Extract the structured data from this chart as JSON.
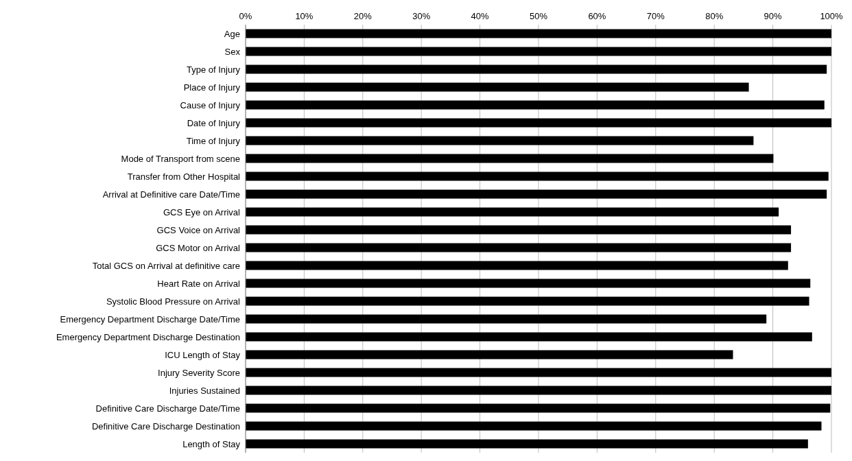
{
  "chart_data": {
    "type": "bar",
    "orientation": "horizontal",
    "categories": [
      "Age",
      "Sex",
      "Type of Injury",
      "Place of Injury",
      "Cause of Injury",
      "Date of Injury",
      "Time of Injury",
      "Mode of Transport from scene",
      "Transfer from Other Hospital",
      "Arrival at Definitive care Date/Time",
      "GCS Eye on Arrival",
      "GCS Voice on Arrival",
      "GCS Motor on Arrival",
      "Total GCS on Arrival at definitive care",
      "Heart Rate on Arrival",
      "Systolic Blood Pressure on Arrival",
      "Emergency Department Discharge Date/Time",
      "Emergency Department Discharge Destination",
      "ICU Length of Stay",
      "Injury Severity Score",
      "Injuries Sustained",
      "Definitive Care Discharge Date/Time",
      "Definitive Care Discharge Destination",
      "Length of Stay"
    ],
    "values": [
      100,
      100,
      99.2,
      85.9,
      98.8,
      100,
      86.7,
      90.1,
      99.5,
      99.2,
      91.0,
      93.1,
      93.1,
      92.6,
      96.4,
      96.2,
      88.9,
      96.7,
      83.2,
      100,
      100,
      99.8,
      98.3,
      96.0
    ],
    "color": "#000000",
    "xlim": [
      0,
      100
    ],
    "xticks": [
      {
        "value": 0,
        "label": "0%"
      },
      {
        "value": 10,
        "label": "10%"
      },
      {
        "value": 20,
        "label": "20%"
      },
      {
        "value": 30,
        "label": "30%"
      },
      {
        "value": 40,
        "label": "40%"
      },
      {
        "value": 50,
        "label": "50%"
      },
      {
        "value": 60,
        "label": "60%"
      },
      {
        "value": 70,
        "label": "70%"
      },
      {
        "value": 80,
        "label": "80%"
      },
      {
        "value": 90,
        "label": "90%"
      },
      {
        "value": 100,
        "label": "100%"
      }
    ],
    "grid": "x"
  }
}
